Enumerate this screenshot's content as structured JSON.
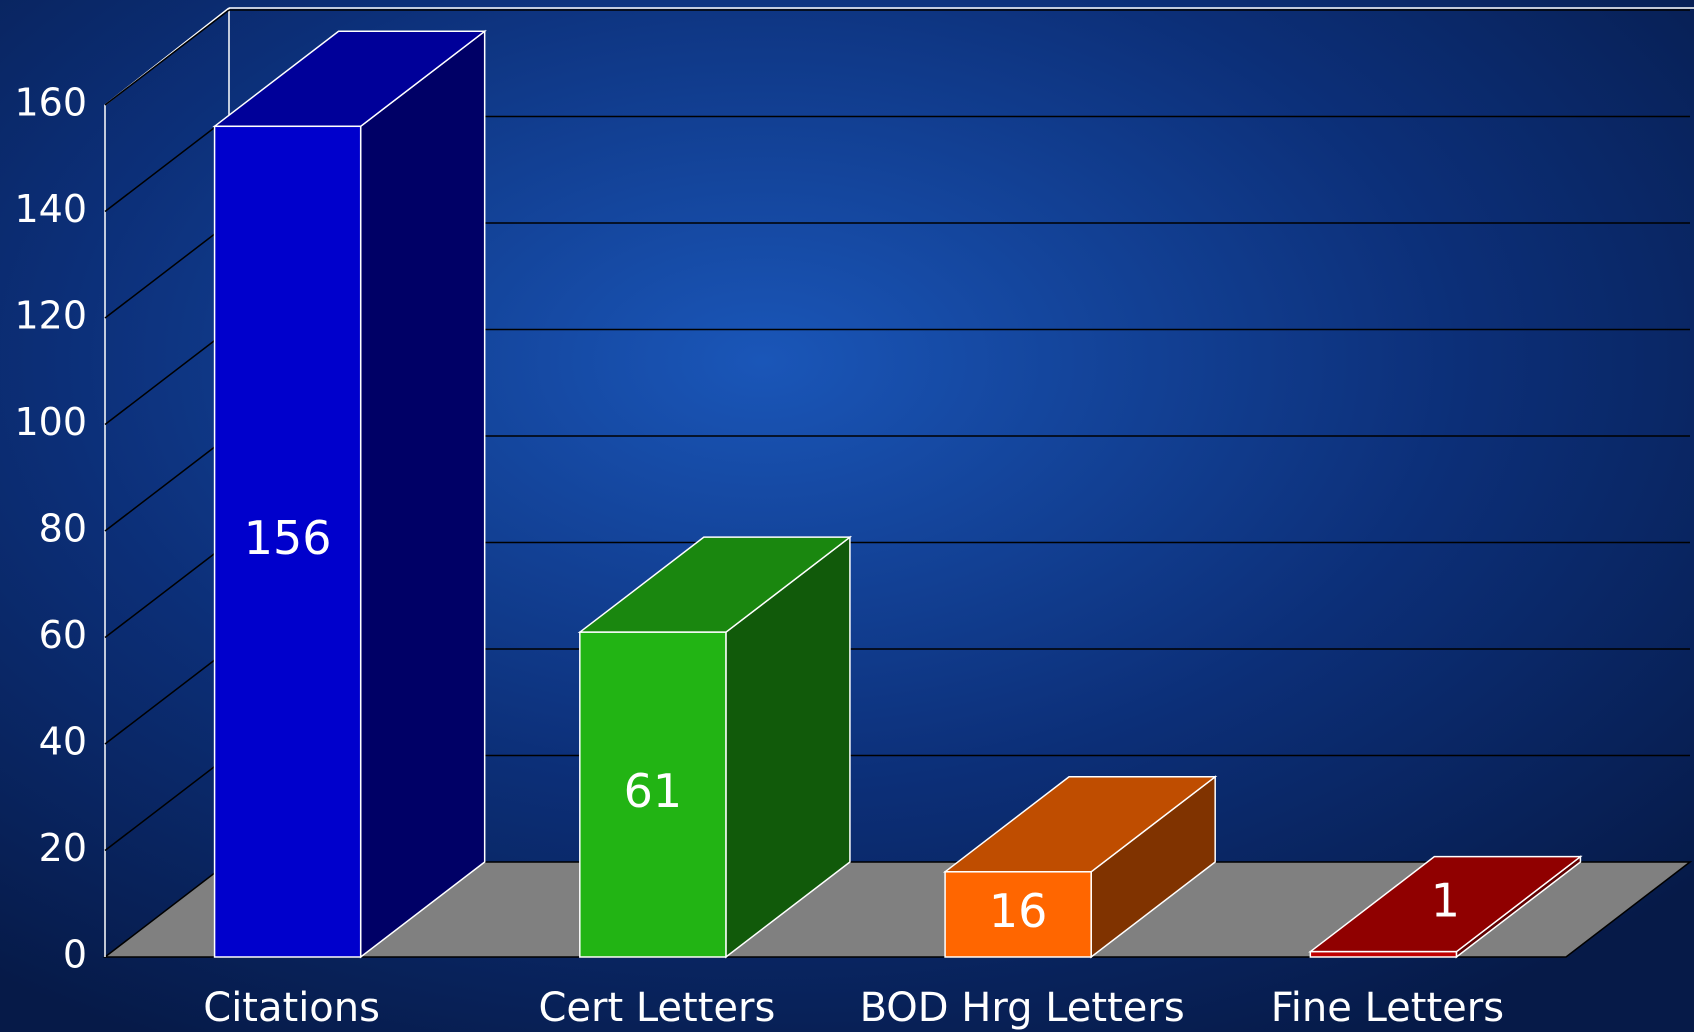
{
  "chart_data": {
    "type": "bar3d",
    "categories": [
      "Citations",
      "Cert Letters",
      "BOD Hrg Letters",
      "Fine Letters"
    ],
    "values": [
      156,
      61,
      16,
      1
    ],
    "colors": [
      "#0000cc",
      "#22b414",
      "#ff6600",
      "#c00000"
    ],
    "ylim": [
      0,
      160
    ],
    "yticks": [
      0,
      20,
      40,
      60,
      80,
      100,
      120,
      140,
      160
    ],
    "grid": true
  }
}
